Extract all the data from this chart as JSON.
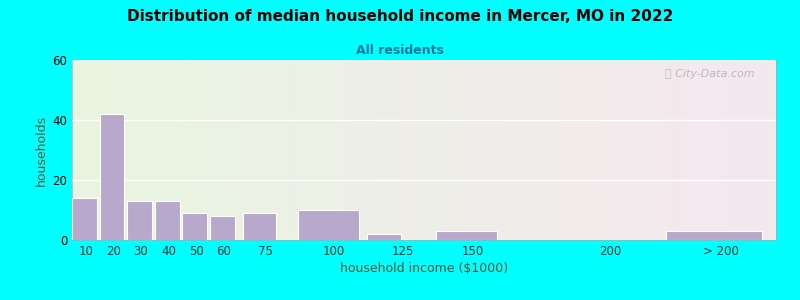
{
  "title": "Distribution of median household income in Mercer, MO in 2022",
  "subtitle": "All residents",
  "xlabel": "household income ($1000)",
  "ylabel": "households",
  "title_fontsize": 11,
  "subtitle_fontsize": 9,
  "xlabel_fontsize": 9,
  "ylabel_fontsize": 9,
  "background_outer": "#00FFFF",
  "bar_color": "#b8a8cc",
  "bar_edge_color": "#ffffff",
  "ylim": [
    0,
    60
  ],
  "yticks": [
    0,
    20,
    40,
    60
  ],
  "tick_labels": [
    "10",
    "20",
    "30",
    "40",
    "50",
    "60",
    "75",
    "100",
    "125",
    "150",
    "200",
    "> 200"
  ],
  "tick_positions": [
    10,
    20,
    30,
    40,
    50,
    60,
    75,
    100,
    125,
    150,
    200,
    240
  ],
  "bar_lefts": [
    5,
    15,
    25,
    35,
    45,
    55,
    67,
    87,
    112,
    137,
    175,
    220
  ],
  "bar_widths": [
    9,
    9,
    9,
    9,
    9,
    9,
    12,
    22,
    12,
    22,
    20,
    35
  ],
  "values": [
    14,
    42,
    13,
    13,
    9,
    8,
    9,
    10,
    2,
    3,
    0,
    3
  ],
  "xlim": [
    5,
    260
  ],
  "watermark": "Ⓣ City-Data.com"
}
